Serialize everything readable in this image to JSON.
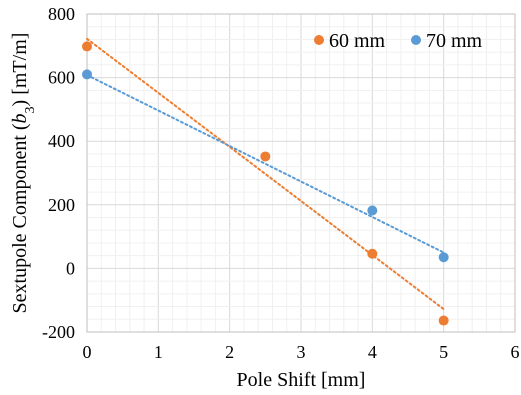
{
  "chart_data": {
    "type": "scatter",
    "title": "",
    "xlabel": "Pole Shift [mm]",
    "ylabel": {
      "prefix": "Sextupole Component (",
      "symbol": "b",
      "subscript": "3",
      "suffix": ") [mT/m]"
    },
    "xlim": [
      0,
      6
    ],
    "ylim": [
      -200,
      800
    ],
    "x_ticks": [
      0,
      1,
      2,
      3,
      4,
      5,
      6
    ],
    "y_ticks": [
      -200,
      0,
      200,
      400,
      600,
      800
    ],
    "grid": true,
    "legend_position": "top-right",
    "series": [
      {
        "name": "60 mm",
        "color": "#ED7D31",
        "x": [
          0,
          2.5,
          4,
          5
        ],
        "y": [
          698,
          352,
          46,
          -164
        ],
        "trendline": {
          "x": [
            0,
            5
          ],
          "y": [
            722,
            -128
          ]
        }
      },
      {
        "name": "70 mm",
        "color": "#5B9BD5",
        "x": [
          0,
          4,
          5
        ],
        "y": [
          610,
          182,
          35
        ],
        "trendline": {
          "x": [
            0,
            5
          ],
          "y": [
            608,
            50
          ]
        }
      }
    ]
  }
}
